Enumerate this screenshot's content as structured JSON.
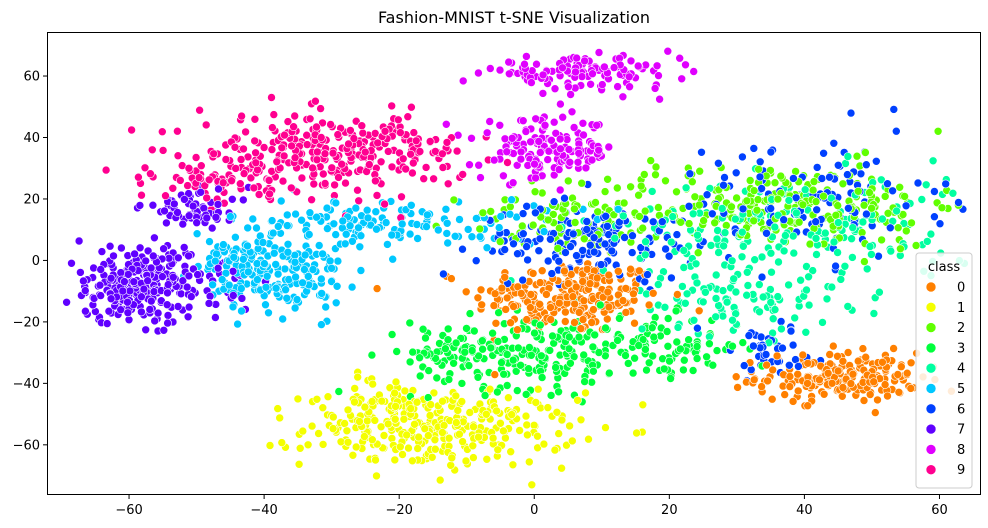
{
  "chart_data": {
    "type": "scatter",
    "title": "Fashion-MNIST t-SNE Visualization",
    "xlabel": "",
    "ylabel": "",
    "xlim": [
      -72,
      66
    ],
    "ylim": [
      -76,
      74
    ],
    "xticks": [
      -60,
      -40,
      -20,
      0,
      20,
      40,
      60
    ],
    "yticks": [
      -60,
      -40,
      -20,
      0,
      20,
      40,
      60
    ],
    "xtick_labels": [
      "−60",
      "−40",
      "−20",
      "0",
      "20",
      "40",
      "60"
    ],
    "ytick_labels": [
      "−60",
      "−40",
      "−20",
      "0",
      "20",
      "40",
      "60"
    ],
    "grid": false,
    "legend": {
      "title": "class",
      "placement": "lower-right"
    },
    "series": [
      {
        "name": "0",
        "color": "#ff8000",
        "clusters": [
          {
            "cx": 5,
            "cy": -12,
            "sx": 7,
            "sy": 6,
            "n": 230
          },
          {
            "cx": 45,
            "cy": -38,
            "sx": 6,
            "sy": 4,
            "n": 200
          }
        ]
      },
      {
        "name": "1",
        "color": "#f4ff00",
        "clusters": [
          {
            "cx": -14,
            "cy": -55,
            "sx": 10,
            "sy": 6,
            "n": 300
          },
          {
            "cx": -22,
            "cy": -46,
            "sx": 4,
            "sy": 4,
            "n": 50
          }
        ]
      },
      {
        "name": "2",
        "color": "#60ff00",
        "clusters": [
          {
            "cx": 35,
            "cy": 18,
            "sx": 15,
            "sy": 7,
            "n": 260
          },
          {
            "cx": 5,
            "cy": 12,
            "sx": 8,
            "sy": 5,
            "n": 60
          }
        ]
      },
      {
        "name": "3",
        "color": "#00ff3c",
        "clusters": [
          {
            "cx": 0,
            "cy": -30,
            "sx": 9,
            "sy": 6,
            "n": 220
          },
          {
            "cx": 20,
            "cy": -28,
            "sx": 6,
            "sy": 5,
            "n": 80
          },
          {
            "cx": -12,
            "cy": -30,
            "sx": 3,
            "sy": 4,
            "n": 30
          }
        ]
      },
      {
        "name": "4",
        "color": "#00ffa0",
        "clusters": [
          {
            "cx": 38,
            "cy": 10,
            "sx": 14,
            "sy": 9,
            "n": 200
          },
          {
            "cx": 30,
            "cy": -12,
            "sx": 8,
            "sy": 6,
            "n": 100
          }
        ]
      },
      {
        "name": "5",
        "color": "#00c8ff",
        "clusters": [
          {
            "cx": -38,
            "cy": -5,
            "sx": 5,
            "sy": 6,
            "n": 180
          },
          {
            "cx": -22,
            "cy": 12,
            "sx": 12,
            "sy": 4,
            "n": 150
          },
          {
            "cx": -45,
            "cy": 0,
            "sx": 4,
            "sy": 3,
            "n": 40
          }
        ]
      },
      {
        "name": "6",
        "color": "#0040ff",
        "clusters": [
          {
            "cx": 8,
            "cy": 6,
            "sx": 8,
            "sy": 6,
            "n": 150
          },
          {
            "cx": 40,
            "cy": 20,
            "sx": 10,
            "sy": 10,
            "n": 120
          },
          {
            "cx": 35,
            "cy": -30,
            "sx": 5,
            "sy": 5,
            "n": 40
          }
        ]
      },
      {
        "name": "7",
        "color": "#6000ff",
        "clusters": [
          {
            "cx": -58,
            "cy": -8,
            "sx": 6,
            "sy": 6,
            "n": 300
          },
          {
            "cx": -50,
            "cy": 17,
            "sx": 4,
            "sy": 3,
            "n": 60
          }
        ]
      },
      {
        "name": "8",
        "color": "#e000ff",
        "clusters": [
          {
            "cx": 7,
            "cy": 61,
            "sx": 7,
            "sy": 2.5,
            "n": 130
          },
          {
            "cx": 2,
            "cy": 36,
            "sx": 5,
            "sy": 5,
            "n": 150
          }
        ]
      },
      {
        "name": "9",
        "color": "#ff0090",
        "clusters": [
          {
            "cx": -30,
            "cy": 35,
            "sx": 10,
            "sy": 6,
            "n": 300
          },
          {
            "cx": -46,
            "cy": 26,
            "sx": 5,
            "sy": 3,
            "n": 60
          }
        ]
      }
    ]
  }
}
